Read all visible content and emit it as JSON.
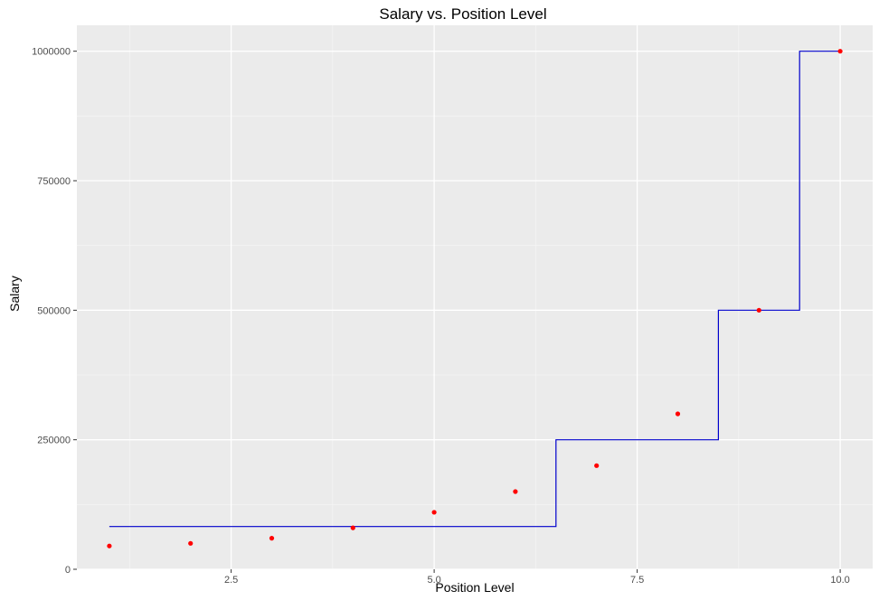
{
  "chart_data": {
    "type": "scatter",
    "title": "Salary vs. Position Level",
    "xlabel": "Position Level",
    "ylabel": "Salary",
    "xlim": [
      0.6,
      10.4
    ],
    "ylim": [
      0,
      1050000
    ],
    "x_ticks": [
      2.5,
      5.0,
      7.5,
      10.0
    ],
    "x_tick_labels": [
      "2.5",
      "5.0",
      "7.5",
      "10.0"
    ],
    "x_minor_ticks": [
      1.25,
      3.75,
      6.25,
      8.75
    ],
    "y_ticks": [
      0,
      250000,
      500000,
      750000,
      1000000
    ],
    "y_tick_labels": [
      "0",
      "250000",
      "500000",
      "750000",
      "1000000"
    ],
    "y_minor_ticks": [
      125000,
      375000,
      625000,
      875000
    ],
    "grid": true,
    "legend": "none",
    "series": [
      {
        "kind": "points",
        "color": "#ff0000",
        "x": [
          1,
          2,
          3,
          4,
          5,
          6,
          7,
          8,
          9,
          10
        ],
        "y": [
          45000,
          50000,
          60000,
          80000,
          110000,
          150000,
          200000,
          300000,
          500000,
          1000000
        ]
      },
      {
        "kind": "step-line",
        "color": "#0000cc",
        "x": [
          1,
          6.5,
          6.5,
          8.5,
          8.5,
          9.5,
          9.5,
          10
        ],
        "y": [
          82500,
          82500,
          250000,
          250000,
          500000,
          500000,
          1000000,
          1000000
        ]
      }
    ]
  }
}
